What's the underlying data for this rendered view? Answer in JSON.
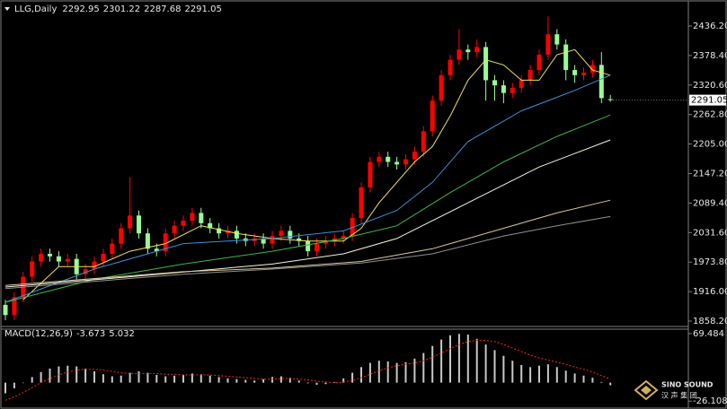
{
  "chart_data": [
    {
      "type": "candlestick",
      "symbol": "LLG,Daily",
      "up_color": "#ff0000",
      "down_color": "#98fb98",
      "open": [
        1890,
        1870,
        1905,
        1945,
        1975,
        1990,
        1985,
        1975,
        1980,
        1950,
        1960,
        1975,
        1990,
        2010,
        2040,
        2065,
        2030,
        2000,
        1995,
        2030,
        2045,
        2055,
        2070,
        2050,
        2040,
        2030,
        2035,
        2020,
        2015,
        2020,
        2010,
        2025,
        2035,
        2020,
        2015,
        1995,
        2010,
        2015,
        2020,
        2025,
        2060,
        2120,
        2170,
        2180,
        2170,
        2165,
        2175,
        2190,
        2230,
        2290,
        2340,
        2370,
        2390,
        2385,
        2395,
        2330,
        2320,
        2305,
        2315,
        2330,
        2350,
        2380,
        2420,
        2400,
        2350,
        2340,
        2345,
        2360,
        2292.95
      ],
      "high": [
        1900,
        1915,
        1955,
        1985,
        2000,
        2000,
        1995,
        1990,
        1990,
        1970,
        1985,
        2000,
        2020,
        2050,
        2140,
        2075,
        2040,
        2010,
        2040,
        2055,
        2065,
        2080,
        2080,
        2060,
        2050,
        2045,
        2045,
        2030,
        2030,
        2030,
        2035,
        2045,
        2045,
        2030,
        2025,
        2020,
        2025,
        2030,
        2035,
        2070,
        2130,
        2180,
        2190,
        2190,
        2180,
        2185,
        2200,
        2240,
        2300,
        2350,
        2380,
        2430,
        2400,
        2410,
        2405,
        2340,
        2330,
        2325,
        2340,
        2360,
        2390,
        2455,
        2430,
        2410,
        2360,
        2355,
        2370,
        2385,
        2301.22
      ],
      "low": [
        1860,
        1860,
        1895,
        1935,
        1965,
        1975,
        1965,
        1965,
        1940,
        1940,
        1950,
        1965,
        1980,
        2000,
        2030,
        2020,
        1990,
        1985,
        1985,
        2020,
        2035,
        2045,
        2040,
        2030,
        2020,
        2020,
        2010,
        2005,
        2005,
        2000,
        2000,
        2015,
        2010,
        2005,
        1985,
        1985,
        2000,
        2005,
        2010,
        2015,
        2050,
        2110,
        2160,
        2160,
        2155,
        2155,
        2165,
        2180,
        2220,
        2280,
        2330,
        2360,
        2370,
        2375,
        2290,
        2290,
        2285,
        2295,
        2305,
        2320,
        2340,
        2370,
        2390,
        2330,
        2325,
        2330,
        2335,
        2285,
        2287.68
      ],
      "close": [
        1870,
        1905,
        1945,
        1975,
        1990,
        1985,
        1975,
        1980,
        1950,
        1960,
        1975,
        1990,
        2010,
        2040,
        2065,
        2030,
        2000,
        1995,
        2030,
        2045,
        2055,
        2070,
        2050,
        2040,
        2030,
        2035,
        2020,
        2015,
        2020,
        2010,
        2025,
        2035,
        2020,
        2015,
        1995,
        2010,
        2015,
        2020,
        2025,
        2060,
        2120,
        2170,
        2180,
        2170,
        2165,
        2175,
        2190,
        2230,
        2290,
        2340,
        2370,
        2390,
        2385,
        2395,
        2330,
        2320,
        2305,
        2315,
        2330,
        2350,
        2380,
        2420,
        2400,
        2350,
        2340,
        2345,
        2360,
        2295,
        2291.05
      ],
      "lines": [
        {
          "color": "#f0e060",
          "x": [
            2,
            6,
            10,
            14,
            18,
            22,
            26,
            30,
            34,
            38,
            40,
            42,
            46,
            48,
            50,
            52,
            54,
            56,
            58,
            60,
            62,
            64,
            66,
            68
          ],
          "values": [
            1900,
            1965,
            1965,
            1995,
            2010,
            2045,
            2030,
            2020,
            2015,
            2015,
            2040,
            2090,
            2170,
            2200,
            2260,
            2330,
            2370,
            2360,
            2330,
            2330,
            2380,
            2390,
            2350,
            2340
          ]
        },
        {
          "color": "#3a8fd8",
          "x": [
            0,
            10,
            20,
            30,
            38,
            44,
            48,
            52,
            58,
            64,
            68
          ],
          "values": [
            1895,
            1960,
            2010,
            2020,
            2035,
            2075,
            2130,
            2210,
            2270,
            2310,
            2340
          ]
        },
        {
          "color": "#3cb84a",
          "x": [
            0,
            10,
            20,
            30,
            38,
            44,
            50,
            56,
            62,
            68
          ],
          "values": [
            1895,
            1940,
            1970,
            1995,
            2020,
            2045,
            2110,
            2170,
            2220,
            2262
          ]
        },
        {
          "color": "#f5f5dc",
          "x": [
            0,
            14,
            30,
            38,
            44,
            52,
            60,
            68
          ],
          "values": [
            1925,
            1945,
            1970,
            1990,
            2020,
            2090,
            2160,
            2213
          ]
        },
        {
          "color": "#d8c8a0",
          "x": [
            0,
            20,
            30,
            40,
            48,
            56,
            62,
            68
          ],
          "values": [
            1928,
            1955,
            1962,
            1975,
            2000,
            2040,
            2070,
            2095
          ]
        },
        {
          "color": "#909090",
          "x": [
            0,
            20,
            30,
            40,
            48,
            56,
            62,
            68
          ],
          "values": [
            1922,
            1950,
            1960,
            1972,
            1990,
            2025,
            2045,
            2063
          ]
        }
      ],
      "ylim": [
        1849.4,
        2460.8
      ],
      "yticks": [
        {
          "value": 1858.2,
          "label": "1858.20"
        },
        {
          "value": 1916,
          "label": "1916.00"
        },
        {
          "value": 1973.8,
          "label": "1973.80"
        },
        {
          "value": 2031.6,
          "label": "2031.60"
        },
        {
          "value": 2089.4,
          "label": "2089.40"
        },
        {
          "value": 2147.2,
          "label": "2147.20"
        },
        {
          "value": 2205,
          "label": "2205.00"
        },
        {
          "value": 2262.8,
          "label": "2262.80"
        },
        {
          "value": 2320.6,
          "label": "2320.60"
        },
        {
          "value": 2378.4,
          "label": "2378.40"
        },
        {
          "value": 2436.2,
          "label": "2436.20"
        }
      ]
    },
    {
      "type": "macd",
      "title": "MACD(12,26,9)",
      "histogram_color": "#c8c8c8",
      "signal_color": "#ff2020",
      "histogram": [
        -15,
        -8,
        0,
        8,
        15,
        20,
        23,
        24,
        23,
        20,
        16,
        12,
        9,
        10,
        14,
        16,
        14,
        11,
        9,
        10,
        11,
        13,
        12,
        10,
        8,
        6,
        5,
        4,
        3,
        5,
        8,
        9,
        7,
        3,
        -1,
        -3,
        -2,
        1,
        6,
        14,
        22,
        28,
        31,
        30,
        28,
        29,
        34,
        42,
        52,
        61,
        67,
        69,
        68,
        62,
        54,
        46,
        38,
        31,
        25,
        22,
        24,
        26,
        22,
        17,
        13,
        10,
        7,
        1,
        -3.673
      ],
      "signal": [
        -25,
        -20,
        -14,
        -7,
        0,
        6,
        11,
        15,
        18,
        19,
        19,
        18,
        16,
        14,
        13,
        13,
        13,
        13,
        12,
        12,
        11,
        11,
        11,
        11,
        10,
        9,
        8,
        7,
        6,
        5,
        5,
        6,
        6,
        5,
        4,
        2,
        1,
        0,
        1,
        3,
        7,
        12,
        17,
        21,
        24,
        26,
        28,
        31,
        36,
        42,
        48,
        54,
        58,
        60,
        60,
        58,
        54,
        49,
        44,
        39,
        35,
        32,
        29,
        26,
        22,
        19,
        15,
        10,
        5.032
      ],
      "ylim": [
        -36,
        75.7
      ],
      "yticks": [
        -26.108,
        69.484
      ]
    }
  ],
  "logo": {
    "name": "SINO SOUND",
    "subtitle": "汉 声 集 团"
  }
}
